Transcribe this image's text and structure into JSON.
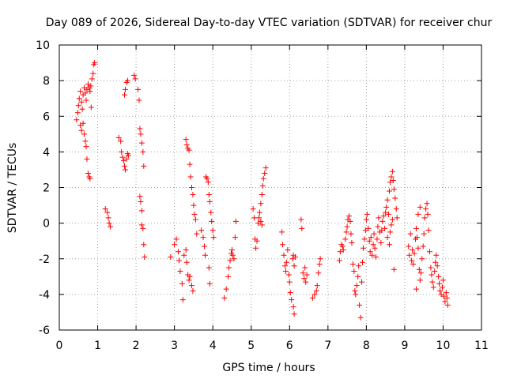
{
  "chart_data": {
    "type": "scatter",
    "title": "Day 089 of 2026, Sidereal Day-to-day VTEC variation (SDTVAR) for receiver chur",
    "xlabel": "GPS time / hours",
    "ylabel": "SDTVAR / TECUs",
    "xlim": [
      0,
      11
    ],
    "ylim": [
      -6,
      10
    ],
    "xticks": [
      0,
      1,
      2,
      3,
      4,
      5,
      6,
      7,
      8,
      9,
      10,
      11
    ],
    "yticks": [
      -6,
      -4,
      -2,
      0,
      2,
      4,
      6,
      8,
      10
    ],
    "grid": true,
    "marker": "+",
    "legend": "none",
    "colors": {
      "points": "#ff0000",
      "grid": "#a0a0a0",
      "axis": "#000000"
    },
    "series": [
      {
        "name": "SDTVAR",
        "points": [
          [
            0.45,
            5.8
          ],
          [
            0.48,
            6.2
          ],
          [
            0.5,
            6.6
          ],
          [
            0.52,
            7.0
          ],
          [
            0.55,
            7.4
          ],
          [
            0.58,
            6.8
          ],
          [
            0.6,
            6.4
          ],
          [
            0.62,
            7.2
          ],
          [
            0.65,
            7.6
          ],
          [
            0.68,
            7.3
          ],
          [
            0.7,
            6.9
          ],
          [
            0.72,
            7.5
          ],
          [
            0.75,
            7.8
          ],
          [
            0.78,
            7.6
          ],
          [
            0.8,
            7.4
          ],
          [
            0.82,
            7.7
          ],
          [
            0.85,
            8.1
          ],
          [
            0.88,
            8.4
          ],
          [
            0.9,
            8.9
          ],
          [
            0.92,
            9.0
          ],
          [
            0.55,
            5.5
          ],
          [
            0.58,
            5.2
          ],
          [
            0.62,
            5.6
          ],
          [
            0.65,
            5.0
          ],
          [
            0.68,
            4.6
          ],
          [
            0.7,
            4.3
          ],
          [
            0.72,
            3.6
          ],
          [
            0.75,
            2.8
          ],
          [
            0.78,
            2.6
          ],
          [
            0.8,
            2.5
          ],
          [
            0.83,
            6.5
          ],
          [
            1.2,
            0.8
          ],
          [
            1.25,
            0.6
          ],
          [
            1.28,
            0.3
          ],
          [
            1.3,
            0.0
          ],
          [
            1.33,
            -0.2
          ],
          [
            1.55,
            4.8
          ],
          [
            1.6,
            4.6
          ],
          [
            1.62,
            4.0
          ],
          [
            1.65,
            3.7
          ],
          [
            1.68,
            3.5
          ],
          [
            1.7,
            3.2
          ],
          [
            1.72,
            3.0
          ],
          [
            1.75,
            3.6
          ],
          [
            1.78,
            3.9
          ],
          [
            1.8,
            3.8
          ],
          [
            1.7,
            7.2
          ],
          [
            1.72,
            7.5
          ],
          [
            1.75,
            7.9
          ],
          [
            1.78,
            8.0
          ],
          [
            1.95,
            8.3
          ],
          [
            1.98,
            8.1
          ],
          [
            2.05,
            7.5
          ],
          [
            2.08,
            6.9
          ],
          [
            2.1,
            5.3
          ],
          [
            2.12,
            5.0
          ],
          [
            2.15,
            4.5
          ],
          [
            2.18,
            4.0
          ],
          [
            2.2,
            3.2
          ],
          [
            2.1,
            1.5
          ],
          [
            2.12,
            1.2
          ],
          [
            2.15,
            0.7
          ],
          [
            2.15,
            -0.1
          ],
          [
            2.18,
            -0.3
          ],
          [
            2.2,
            -1.2
          ],
          [
            2.22,
            -1.9
          ],
          [
            2.9,
            -1.9
          ],
          [
            3.0,
            -1.2
          ],
          [
            3.05,
            -0.9
          ],
          [
            3.1,
            -1.6
          ],
          [
            3.12,
            -2.1
          ],
          [
            3.15,
            -2.7
          ],
          [
            3.2,
            -3.4
          ],
          [
            3.22,
            -4.3
          ],
          [
            3.25,
            -1.8
          ],
          [
            3.3,
            -1.5
          ],
          [
            3.32,
            -2.2
          ],
          [
            3.35,
            -2.9
          ],
          [
            3.38,
            -3.2
          ],
          [
            3.4,
            -3.0
          ],
          [
            3.45,
            -3.5
          ],
          [
            3.48,
            -3.8
          ],
          [
            3.3,
            4.7
          ],
          [
            3.32,
            4.4
          ],
          [
            3.35,
            4.2
          ],
          [
            3.38,
            4.1
          ],
          [
            3.4,
            3.3
          ],
          [
            3.42,
            2.6
          ],
          [
            3.45,
            2.0
          ],
          [
            3.48,
            1.6
          ],
          [
            3.5,
            1.0
          ],
          [
            3.52,
            0.5
          ],
          [
            3.55,
            0.2
          ],
          [
            3.58,
            -0.6
          ],
          [
            3.7,
            -0.4
          ],
          [
            3.75,
            -0.8
          ],
          [
            3.78,
            -1.3
          ],
          [
            3.8,
            -1.8
          ],
          [
            3.82,
            2.6
          ],
          [
            3.85,
            2.5
          ],
          [
            3.88,
            2.3
          ],
          [
            3.9,
            1.6
          ],
          [
            3.92,
            1.2
          ],
          [
            3.95,
            0.6
          ],
          [
            3.97,
            0.1
          ],
          [
            4.0,
            -0.4
          ],
          [
            4.02,
            -0.8
          ],
          [
            3.9,
            -2.5
          ],
          [
            3.92,
            -3.4
          ],
          [
            4.3,
            -4.2
          ],
          [
            4.35,
            -3.7
          ],
          [
            4.4,
            -3.0
          ],
          [
            4.42,
            -2.5
          ],
          [
            4.45,
            -2.1
          ],
          [
            4.48,
            -1.7
          ],
          [
            4.5,
            -1.5
          ],
          [
            4.52,
            -1.8
          ],
          [
            4.55,
            -2.0
          ],
          [
            4.58,
            -0.8
          ],
          [
            4.6,
            0.1
          ],
          [
            5.05,
            0.8
          ],
          [
            5.08,
            0.3
          ],
          [
            5.1,
            -0.9
          ],
          [
            5.12,
            -1.4
          ],
          [
            5.15,
            -1.0
          ],
          [
            5.18,
            0.0
          ],
          [
            5.2,
            0.3
          ],
          [
            5.22,
            0.6
          ],
          [
            5.25,
            1.1
          ],
          [
            5.28,
            1.6
          ],
          [
            5.3,
            2.1
          ],
          [
            5.32,
            2.5
          ],
          [
            5.35,
            2.8
          ],
          [
            5.38,
            3.1
          ],
          [
            5.25,
            0.1
          ],
          [
            5.28,
            -0.1
          ],
          [
            5.8,
            -0.5
          ],
          [
            5.82,
            -1.2
          ],
          [
            5.85,
            -1.8
          ],
          [
            5.88,
            -2.4
          ],
          [
            5.9,
            -2.7
          ],
          [
            5.92,
            -2.2
          ],
          [
            5.95,
            -1.5
          ],
          [
            5.98,
            -2.9
          ],
          [
            6.0,
            -3.3
          ],
          [
            6.02,
            -3.9
          ],
          [
            6.05,
            -4.3
          ],
          [
            6.08,
            -2.0
          ],
          [
            6.1,
            -1.8
          ],
          [
            6.12,
            -2.4
          ],
          [
            6.15,
            -1.9
          ],
          [
            6.1,
            -4.7
          ],
          [
            6.12,
            -5.1
          ],
          [
            6.3,
            0.2
          ],
          [
            6.32,
            -0.3
          ],
          [
            6.35,
            -2.8
          ],
          [
            6.38,
            -3.1
          ],
          [
            6.4,
            -2.5
          ],
          [
            6.42,
            -3.3
          ],
          [
            6.45,
            -2.9
          ],
          [
            6.6,
            -4.2
          ],
          [
            6.65,
            -4.0
          ],
          [
            6.7,
            -3.8
          ],
          [
            6.72,
            -3.5
          ],
          [
            6.75,
            -2.8
          ],
          [
            6.78,
            -2.3
          ],
          [
            6.8,
            -2.0
          ],
          [
            7.3,
            -2.1
          ],
          [
            7.32,
            -1.6
          ],
          [
            7.35,
            -1.2
          ],
          [
            7.38,
            -1.3
          ],
          [
            7.4,
            -1.5
          ],
          [
            7.45,
            -0.9
          ],
          [
            7.48,
            -0.5
          ],
          [
            7.5,
            -0.2
          ],
          [
            7.52,
            0.2
          ],
          [
            7.55,
            0.4
          ],
          [
            7.58,
            0.1
          ],
          [
            7.6,
            -0.6
          ],
          [
            7.62,
            -1.1
          ],
          [
            7.65,
            -2.3
          ],
          [
            7.68,
            -2.7
          ],
          [
            7.7,
            -3.8
          ],
          [
            7.72,
            -4.0
          ],
          [
            7.75,
            -3.5
          ],
          [
            7.78,
            -3.0
          ],
          [
            7.8,
            -2.4
          ],
          [
            7.82,
            -4.6
          ],
          [
            7.85,
            -5.3
          ],
          [
            7.88,
            -3.3
          ],
          [
            7.9,
            -2.2
          ],
          [
            7.92,
            -1.4
          ],
          [
            7.95,
            -0.9
          ],
          [
            7.98,
            -0.4
          ],
          [
            8.0,
            0.2
          ],
          [
            8.02,
            0.5
          ],
          [
            8.05,
            -0.3
          ],
          [
            8.08,
            -1.0
          ],
          [
            8.1,
            -1.6
          ],
          [
            8.12,
            -0.8
          ],
          [
            8.15,
            -1.8
          ],
          [
            8.18,
            -1.2
          ],
          [
            8.2,
            -0.6
          ],
          [
            8.22,
            -1.4
          ],
          [
            8.25,
            -1.9
          ],
          [
            8.28,
            -0.9
          ],
          [
            8.3,
            -0.2
          ],
          [
            8.32,
            0.3
          ],
          [
            8.35,
            -0.5
          ],
          [
            8.38,
            -1.1
          ],
          [
            8.4,
            -0.4
          ],
          [
            8.42,
            0.1
          ],
          [
            8.45,
            0.4
          ],
          [
            8.48,
            -0.3
          ],
          [
            8.5,
            0.6
          ],
          [
            8.52,
            0.9
          ],
          [
            8.55,
            1.3
          ],
          [
            8.58,
            0.5
          ],
          [
            8.6,
            1.8
          ],
          [
            8.62,
            2.3
          ],
          [
            8.65,
            2.6
          ],
          [
            8.68,
            2.9
          ],
          [
            8.7,
            2.4
          ],
          [
            8.72,
            1.9
          ],
          [
            8.75,
            1.4
          ],
          [
            8.78,
            0.8
          ],
          [
            8.8,
            0.3
          ],
          [
            8.72,
            -2.6
          ],
          [
            8.55,
            -0.8
          ],
          [
            8.6,
            -1.2
          ],
          [
            8.62,
            -0.5
          ],
          [
            8.65,
            -0.1
          ],
          [
            8.68,
            0.2
          ],
          [
            9.1,
            -1.3
          ],
          [
            9.12,
            -1.8
          ],
          [
            9.15,
            -0.6
          ],
          [
            9.18,
            -2.1
          ],
          [
            9.2,
            -1.5
          ],
          [
            9.22,
            -2.3
          ],
          [
            9.25,
            -1.7
          ],
          [
            9.28,
            -0.9
          ],
          [
            9.3,
            -0.3
          ],
          [
            9.32,
            -0.8
          ],
          [
            9.35,
            -1.4
          ],
          [
            9.38,
            -2.6
          ],
          [
            9.4,
            -3.2
          ],
          [
            9.42,
            -2.8
          ],
          [
            9.45,
            -2.0
          ],
          [
            9.48,
            -1.3
          ],
          [
            9.5,
            -0.6
          ],
          [
            9.52,
            0.3
          ],
          [
            9.55,
            0.8
          ],
          [
            9.58,
            1.1
          ],
          [
            9.6,
            0.5
          ],
          [
            9.62,
            -0.4
          ],
          [
            9.65,
            -1.6
          ],
          [
            9.68,
            -2.5
          ],
          [
            9.7,
            -2.9
          ],
          [
            9.72,
            -3.3
          ],
          [
            9.75,
            -3.6
          ],
          [
            9.78,
            -2.7
          ],
          [
            9.8,
            -2.2
          ],
          [
            9.82,
            -1.8
          ],
          [
            9.85,
            -2.4
          ],
          [
            9.88,
            -3.0
          ],
          [
            9.9,
            -3.4
          ],
          [
            9.92,
            -3.8
          ],
          [
            9.95,
            -4.0
          ],
          [
            9.98,
            -3.6
          ],
          [
            10.0,
            -3.2
          ],
          [
            10.02,
            -4.1
          ],
          [
            10.05,
            -4.4
          ],
          [
            10.08,
            -3.9
          ],
          [
            10.1,
            -4.2
          ],
          [
            10.12,
            -4.6
          ],
          [
            9.3,
            -3.7
          ],
          [
            9.35,
            0.5
          ],
          [
            9.4,
            0.9
          ]
        ]
      }
    ]
  }
}
